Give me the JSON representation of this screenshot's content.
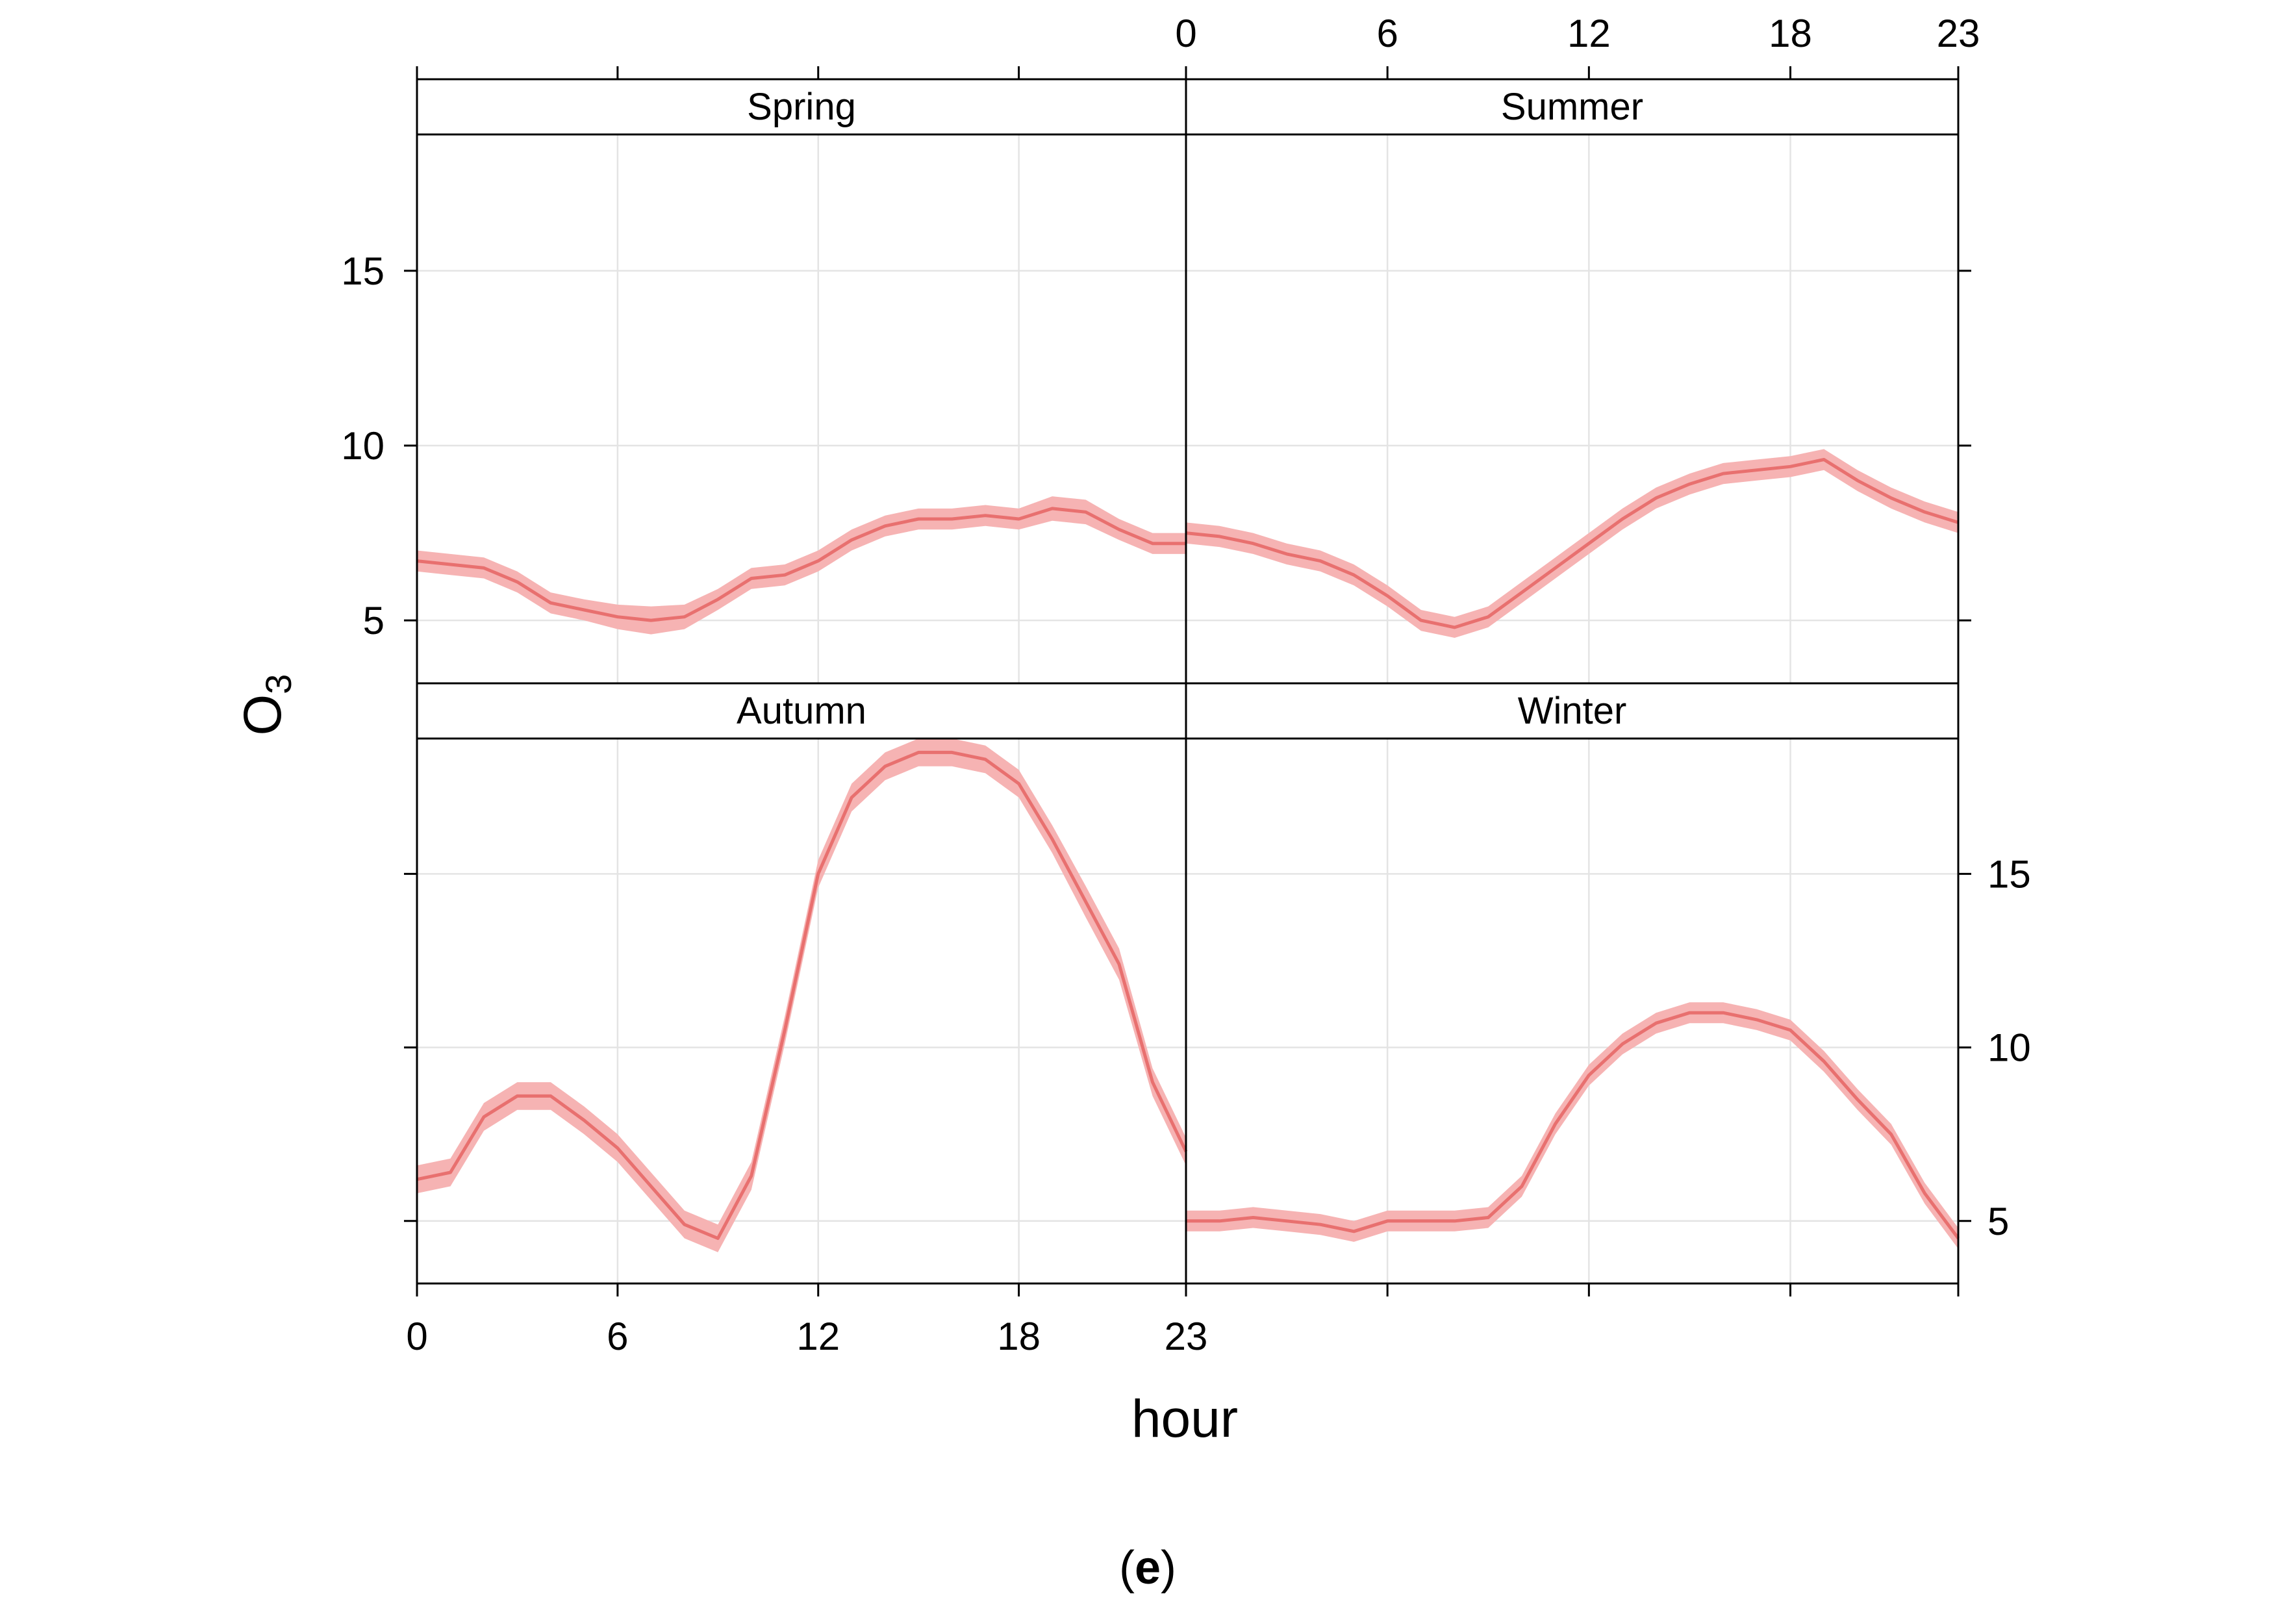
{
  "chart_data": {
    "type": "line",
    "layout": "2x2 facets",
    "xlabel": "hour",
    "ylabel": "O3",
    "ylabel_base": "O",
    "ylabel_sub": "3",
    "xlim": [
      0,
      23
    ],
    "ylim": [
      3.2,
      18.9
    ],
    "x_ticks": [
      0,
      6,
      12,
      18,
      23
    ],
    "y_ticks": [
      5,
      10,
      15
    ],
    "x_tick_labels": [
      "0",
      "6",
      "12",
      "18",
      "23"
    ],
    "y_tick_labels": [
      "5",
      "10",
      "15"
    ],
    "grid": true,
    "line_color": "#e8706f",
    "band_color": "#f6b3b3",
    "caption": "(e)",
    "caption_open": "(",
    "caption_letter": "e",
    "caption_close": ")",
    "x": [
      0,
      1,
      2,
      3,
      4,
      5,
      6,
      7,
      8,
      9,
      10,
      11,
      12,
      13,
      14,
      15,
      16,
      17,
      18,
      19,
      20,
      21,
      22,
      23
    ],
    "panels": [
      {
        "name": "Spring",
        "values": [
          6.7,
          6.6,
          6.5,
          6.1,
          5.5,
          5.3,
          5.1,
          5.0,
          5.1,
          5.6,
          6.2,
          6.3,
          6.7,
          7.3,
          7.7,
          7.9,
          7.9,
          8.0,
          7.9,
          8.2,
          8.1,
          7.6,
          7.2,
          7.2
        ],
        "band": [
          0.3,
          0.3,
          0.3,
          0.3,
          0.3,
          0.3,
          0.35,
          0.4,
          0.35,
          0.3,
          0.3,
          0.3,
          0.3,
          0.3,
          0.3,
          0.3,
          0.3,
          0.3,
          0.3,
          0.35,
          0.35,
          0.3,
          0.3,
          0.3
        ]
      },
      {
        "name": "Summer",
        "values": [
          7.5,
          7.4,
          7.2,
          6.9,
          6.7,
          6.3,
          5.7,
          5.0,
          4.8,
          5.1,
          5.8,
          6.5,
          7.2,
          7.9,
          8.5,
          8.9,
          9.2,
          9.3,
          9.4,
          9.6,
          9.0,
          8.5,
          8.1,
          7.8
        ],
        "band": [
          0.3,
          0.3,
          0.3,
          0.3,
          0.3,
          0.3,
          0.3,
          0.3,
          0.3,
          0.3,
          0.3,
          0.3,
          0.3,
          0.3,
          0.3,
          0.3,
          0.3,
          0.3,
          0.3,
          0.3,
          0.3,
          0.3,
          0.3,
          0.3
        ]
      },
      {
        "name": "Autumn",
        "values": [
          6.2,
          6.4,
          8.0,
          8.6,
          8.6,
          7.9,
          7.1,
          6.0,
          4.9,
          4.5,
          6.3,
          10.5,
          15.0,
          17.2,
          18.1,
          18.5,
          18.5,
          18.3,
          17.6,
          16.0,
          14.2,
          12.4,
          9.0,
          7.0
        ],
        "band": [
          0.4,
          0.4,
          0.4,
          0.4,
          0.4,
          0.4,
          0.4,
          0.4,
          0.4,
          0.4,
          0.4,
          0.4,
          0.4,
          0.4,
          0.4,
          0.4,
          0.4,
          0.4,
          0.4,
          0.4,
          0.45,
          0.45,
          0.4,
          0.4
        ]
      },
      {
        "name": "Winter",
        "values": [
          5.0,
          5.0,
          5.1,
          5.0,
          4.9,
          4.7,
          5.0,
          5.0,
          5.0,
          5.1,
          6.0,
          7.8,
          9.2,
          10.1,
          10.7,
          11.0,
          11.0,
          10.8,
          10.5,
          9.6,
          8.5,
          7.5,
          5.8,
          4.5
        ],
        "band": [
          0.3,
          0.3,
          0.3,
          0.3,
          0.3,
          0.3,
          0.3,
          0.3,
          0.3,
          0.3,
          0.3,
          0.3,
          0.3,
          0.3,
          0.3,
          0.3,
          0.3,
          0.3,
          0.3,
          0.3,
          0.3,
          0.3,
          0.3,
          0.3
        ]
      }
    ]
  }
}
